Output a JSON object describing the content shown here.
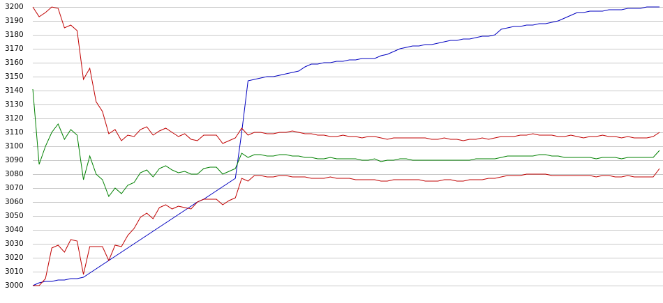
{
  "chart_data": {
    "type": "line",
    "ylim": [
      3000,
      3200
    ],
    "yticks": [
      3000,
      3010,
      3020,
      3030,
      3040,
      3050,
      3060,
      3070,
      3080,
      3090,
      3100,
      3110,
      3120,
      3130,
      3140,
      3150,
      3160,
      3170,
      3180,
      3190,
      3200
    ],
    "grid": true,
    "series": [
      {
        "color": "#0000c0",
        "values": [
          3000,
          3002,
          3003,
          3003,
          3004,
          3004,
          3005,
          3005,
          3006,
          3009,
          3012,
          3015,
          3018,
          3021,
          3024,
          3027,
          3030,
          3033,
          3036,
          3039,
          3042,
          3045,
          3048,
          3051,
          3054,
          3057,
          3060,
          3062,
          3065,
          3068,
          3071,
          3074,
          3077,
          3110,
          3147,
          3148,
          3149,
          3150,
          3150,
          3151,
          3152,
          3153,
          3154,
          3157,
          3159,
          3159,
          3160,
          3160,
          3161,
          3161,
          3162,
          3162,
          3163,
          3163,
          3163,
          3165,
          3166,
          3168,
          3170,
          3171,
          3172,
          3172,
          3173,
          3173,
          3174,
          3175,
          3176,
          3176,
          3177,
          3177,
          3178,
          3179,
          3179,
          3180,
          3184,
          3185,
          3186,
          3186,
          3187,
          3187,
          3188,
          3188,
          3189,
          3190,
          3192,
          3194,
          3196,
          3196,
          3197,
          3197,
          3197,
          3198,
          3198,
          3198,
          3199,
          3199,
          3199,
          3200,
          3200,
          3200
        ]
      },
      {
        "color": "#c00000",
        "values": [
          3200,
          3193,
          3196,
          3200,
          3199,
          3185,
          3187,
          3183,
          3148,
          3156,
          3132,
          3125,
          3109,
          3112,
          3104,
          3108,
          3107,
          3112,
          3114,
          3108,
          3111,
          3113,
          3110,
          3107,
          3109,
          3105,
          3104,
          3108,
          3108,
          3108,
          3102,
          3104,
          3106,
          3113,
          3108,
          3110,
          3110,
          3109,
          3109,
          3110,
          3110,
          3111,
          3110,
          3109,
          3109,
          3108,
          3108,
          3107,
          3107,
          3108,
          3107,
          3107,
          3106,
          3107,
          3107,
          3106,
          3105,
          3106,
          3106,
          3106,
          3106,
          3106,
          3106,
          3105,
          3105,
          3106,
          3105,
          3105,
          3104,
          3105,
          3105,
          3106,
          3105,
          3106,
          3107,
          3107,
          3107,
          3108,
          3108,
          3109,
          3108,
          3108,
          3108,
          3107,
          3107,
          3108,
          3107,
          3106,
          3107,
          3107,
          3108,
          3107,
          3107,
          3106,
          3107,
          3106,
          3106,
          3106,
          3107,
          3110
        ]
      },
      {
        "color": "#008000",
        "values": [
          3141,
          3087,
          3100,
          3110,
          3116,
          3105,
          3112,
          3108,
          3076,
          3093,
          3080,
          3076,
          3064,
          3070,
          3066,
          3072,
          3074,
          3081,
          3083,
          3078,
          3084,
          3086,
          3083,
          3081,
          3082,
          3080,
          3080,
          3084,
          3085,
          3085,
          3080,
          3082,
          3084,
          3095,
          3092,
          3094,
          3094,
          3093,
          3093,
          3094,
          3094,
          3093,
          3093,
          3092,
          3092,
          3091,
          3091,
          3092,
          3091,
          3091,
          3091,
          3091,
          3090,
          3090,
          3091,
          3089,
          3090,
          3090,
          3091,
          3091,
          3090,
          3090,
          3090,
          3090,
          3090,
          3090,
          3090,
          3090,
          3090,
          3090,
          3091,
          3091,
          3091,
          3091,
          3092,
          3093,
          3093,
          3093,
          3093,
          3093,
          3094,
          3094,
          3093,
          3093,
          3092,
          3092,
          3092,
          3092,
          3092,
          3091,
          3092,
          3092,
          3092,
          3091,
          3092,
          3092,
          3092,
          3092,
          3092,
          3097
        ]
      },
      {
        "color": "#c00000",
        "values": [
          3000,
          3000,
          3005,
          3027,
          3029,
          3024,
          3033,
          3032,
          3008,
          3028,
          3028,
          3028,
          3018,
          3029,
          3028,
          3036,
          3041,
          3049,
          3052,
          3048,
          3056,
          3058,
          3055,
          3057,
          3056,
          3055,
          3060,
          3062,
          3062,
          3062,
          3058,
          3061,
          3063,
          3077,
          3075,
          3079,
          3079,
          3078,
          3078,
          3079,
          3079,
          3078,
          3078,
          3078,
          3077,
          3077,
          3077,
          3078,
          3077,
          3077,
          3077,
          3076,
          3076,
          3076,
          3076,
          3075,
          3075,
          3076,
          3076,
          3076,
          3076,
          3076,
          3075,
          3075,
          3075,
          3076,
          3076,
          3075,
          3075,
          3076,
          3076,
          3076,
          3077,
          3077,
          3078,
          3079,
          3079,
          3079,
          3080,
          3080,
          3080,
          3080,
          3079,
          3079,
          3079,
          3079,
          3079,
          3079,
          3079,
          3078,
          3079,
          3079,
          3078,
          3078,
          3079,
          3078,
          3078,
          3078,
          3078,
          3084
        ]
      }
    ]
  }
}
